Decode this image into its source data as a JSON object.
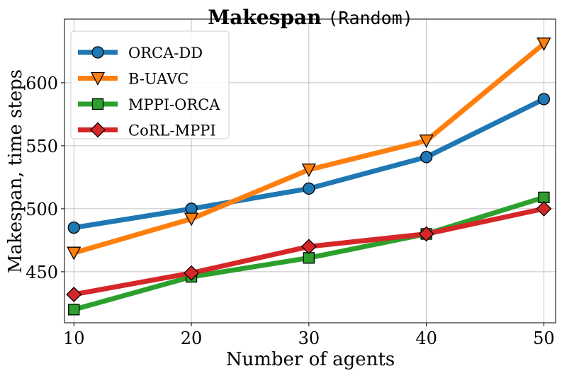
{
  "chart_data": {
    "type": "line",
    "title": "Makespan",
    "title_suffix": "(Random)",
    "xlabel": "Number of agents",
    "ylabel": "Makespan, time steps",
    "x": [
      10,
      20,
      30,
      40,
      50
    ],
    "xlim": [
      9.2,
      51
    ],
    "ylim": [
      409.5,
      650.5
    ],
    "xticks": [
      10,
      20,
      30,
      40,
      50
    ],
    "yticks": [
      450,
      500,
      550,
      600
    ],
    "grid": true,
    "legend_position": "top-left",
    "series": [
      {
        "name": "ORCA-DD",
        "color": "#1f77b4",
        "marker": "circle",
        "values": [
          485,
          500,
          516,
          541,
          587
        ]
      },
      {
        "name": "B-UAVC",
        "color": "#ff7f0e",
        "marker": "triangle-down",
        "values": [
          465,
          492,
          531,
          554,
          631
        ]
      },
      {
        "name": "MPPI-ORCA",
        "color": "#2ca02c",
        "marker": "square",
        "values": [
          420,
          446,
          461,
          480,
          509
        ]
      },
      {
        "name": "CoRL-MPPI",
        "color": "#d62728",
        "marker": "diamond",
        "values": [
          432,
          449,
          470,
          480,
          500
        ]
      }
    ]
  }
}
